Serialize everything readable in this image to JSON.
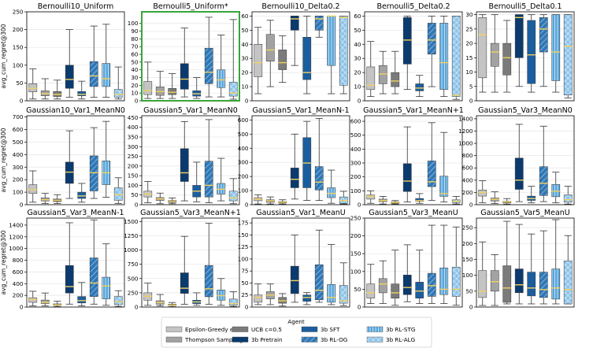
{
  "figure": {
    "y_label": "avg_cum_regret@300",
    "highlighted_panel": "Bernoulli5_Uniform",
    "highlight_color": "#3aa63a"
  },
  "legend": {
    "title": "Agent",
    "entries": [
      {
        "name": "Epsilon-Greedy e=0.1",
        "color": "#c4c4c4",
        "pattern": "solid"
      },
      {
        "name": "Thompson Sampling",
        "color": "#a2a2a2",
        "pattern": "solid"
      },
      {
        "name": "UCB c=0.5",
        "color": "#7b7b7b",
        "pattern": "solid"
      },
      {
        "name": "3b Pretrain",
        "color": "#0b3a6e",
        "pattern": "solid"
      },
      {
        "name": "3b SFT",
        "color": "#1b5ea0",
        "pattern": "solid"
      },
      {
        "name": "3b RL-OG",
        "color": "#2f78b8",
        "pattern": "hatch"
      },
      {
        "name": "3b RL-STG",
        "color": "#58a6dc",
        "pattern": "vlines"
      },
      {
        "name": "3b RL-ALG",
        "color": "#8ec4ea",
        "pattern": "cross"
      }
    ],
    "median_color": "#f2d15b"
  },
  "chart_data": [
    {
      "type": "box",
      "title": "Bernoulli10_Uniform",
      "ylim": [
        0,
        250
      ],
      "yticks": [
        0,
        50,
        100,
        150,
        200,
        250
      ],
      "boxes": [
        [
          5,
          25,
          35,
          48,
          90
        ],
        [
          5,
          14,
          20,
          28,
          62
        ],
        [
          5,
          12,
          18,
          26,
          58
        ],
        [
          10,
          35,
          60,
          100,
          200
        ],
        [
          5,
          14,
          18,
          26,
          55
        ],
        [
          10,
          40,
          70,
          110,
          210
        ],
        [
          10,
          40,
          62,
          105,
          215
        ],
        [
          5,
          10,
          18,
          32,
          95
        ]
      ]
    },
    {
      "type": "box",
      "title": "Bernoulli5_Uniform*",
      "ylim": [
        0,
        115
      ],
      "yticks": [
        0,
        10,
        20,
        30,
        40,
        50,
        60,
        70,
        80,
        90,
        100
      ],
      "boxes": [
        [
          3,
          8,
          13,
          25,
          50
        ],
        [
          3,
          7,
          12,
          18,
          38
        ],
        [
          3,
          8,
          11,
          16,
          35
        ],
        [
          5,
          15,
          28,
          48,
          94
        ],
        [
          3,
          6,
          9,
          13,
          30
        ],
        [
          5,
          22,
          37,
          68,
          108
        ],
        [
          5,
          17,
          27,
          40,
          85
        ],
        [
          2,
          6,
          10,
          24,
          105
        ]
      ]
    },
    {
      "type": "box",
      "title": "Bernoulli10_Delta0.2",
      "ylim": [
        0,
        63
      ],
      "yticks": [
        0,
        10,
        20,
        30,
        40,
        50,
        60
      ],
      "boxes": [
        [
          5,
          17,
          27,
          40,
          52
        ],
        [
          10,
          28,
          36,
          47,
          57
        ],
        [
          13,
          22,
          27,
          36,
          46
        ],
        [
          25,
          50,
          58,
          60,
          60
        ],
        [
          5,
          15,
          20,
          45,
          60
        ],
        [
          45,
          50,
          58,
          60,
          60
        ],
        [
          5,
          25,
          60,
          60,
          60
        ],
        [
          5,
          11,
          59,
          60,
          60
        ]
      ]
    },
    {
      "type": "box",
      "title": "Bernoulli5_Delta0.2",
      "ylim": [
        0,
        63
      ],
      "yticks": [
        0,
        10,
        20,
        30,
        40,
        50,
        60
      ],
      "boxes": [
        [
          3,
          8,
          11,
          24,
          42
        ],
        [
          5,
          12,
          19,
          25,
          35
        ],
        [
          5,
          10,
          14,
          20,
          35
        ],
        [
          8,
          26,
          43,
          59,
          60
        ],
        [
          3,
          7,
          9,
          12,
          18
        ],
        [
          10,
          33,
          43,
          55,
          60
        ],
        [
          3,
          8,
          27,
          55,
          60
        ],
        [
          1,
          3,
          4,
          60,
          60
        ]
      ]
    },
    {
      "type": "box",
      "title": "Bernoulli5_Delta0.1",
      "ylim": [
        0,
        31
      ],
      "yticks": [
        0,
        5,
        10,
        15,
        20,
        25,
        30
      ],
      "boxes": [
        [
          3,
          8,
          23,
          29,
          30
        ],
        [
          3,
          12,
          17,
          20,
          30
        ],
        [
          3,
          9,
          15,
          20,
          28
        ],
        [
          5,
          15,
          29,
          30,
          30
        ],
        [
          3,
          6,
          16,
          28,
          30
        ],
        [
          5,
          17,
          25,
          29,
          30
        ],
        [
          3,
          7,
          17,
          30,
          30
        ],
        [
          1,
          2,
          19,
          30,
          30
        ]
      ]
    },
    {
      "type": "box",
      "title": "Gaussian10_Var1_MeanN0",
      "ylim": [
        0,
        710
      ],
      "yticks": [
        0,
        100,
        200,
        300,
        400,
        500,
        600,
        700
      ],
      "boxes": [
        [
          20,
          90,
          120,
          160,
          270
        ],
        [
          10,
          30,
          40,
          55,
          90
        ],
        [
          10,
          25,
          35,
          45,
          80
        ],
        [
          50,
          170,
          260,
          340,
          590
        ],
        [
          20,
          50,
          70,
          100,
          170
        ],
        [
          50,
          110,
          255,
          390,
          615
        ],
        [
          60,
          160,
          255,
          350,
          665
        ],
        [
          10,
          35,
          80,
          135,
          215
        ]
      ]
    },
    {
      "type": "box",
      "title": "Gaussian5_Var1_MeanN0",
      "ylim": [
        0,
        460
      ],
      "yticks": [
        0,
        50,
        100,
        150,
        200,
        250,
        300,
        350,
        400,
        450
      ],
      "boxes": [
        [
          10,
          40,
          55,
          70,
          120
        ],
        [
          5,
          22,
          30,
          37,
          60
        ],
        [
          5,
          12,
          18,
          22,
          35
        ],
        [
          20,
          120,
          165,
          290,
          430
        ],
        [
          15,
          40,
          70,
          100,
          220
        ],
        [
          10,
          40,
          100,
          225,
          440
        ],
        [
          20,
          55,
          80,
          110,
          240
        ],
        [
          5,
          20,
          35,
          70,
          135
        ]
      ]
    },
    {
      "type": "box",
      "title": "Gaussian5_Var1_MeanN-1",
      "ylim": [
        0,
        630
      ],
      "yticks": [
        0,
        100,
        200,
        300,
        400,
        500,
        600
      ],
      "boxes": [
        [
          5,
          28,
          40,
          50,
          70
        ],
        [
          5,
          17,
          27,
          35,
          55
        ],
        [
          5,
          12,
          17,
          22,
          35
        ],
        [
          40,
          120,
          180,
          260,
          500
        ],
        [
          30,
          120,
          295,
          475,
          590
        ],
        [
          30,
          105,
          160,
          270,
          610
        ],
        [
          10,
          50,
          80,
          120,
          245
        ],
        [
          5,
          10,
          30,
          55,
          95
        ]
      ]
    },
    {
      "type": "box",
      "title": "Gaussian5_Var1_MeanN+1",
      "ylim": [
        0,
        640
      ],
      "yticks": [
        0,
        100,
        200,
        300,
        400,
        500,
        600
      ],
      "boxes": [
        [
          10,
          40,
          60,
          70,
          100
        ],
        [
          5,
          22,
          30,
          40,
          60
        ],
        [
          5,
          10,
          15,
          20,
          30
        ],
        [
          20,
          95,
          170,
          295,
          560
        ],
        [
          10,
          25,
          30,
          45,
          80
        ],
        [
          30,
          130,
          165,
          315,
          590
        ],
        [
          20,
          60,
          80,
          205,
          520
        ],
        [
          5,
          15,
          25,
          35,
          60
        ]
      ]
    },
    {
      "type": "box",
      "title": "Gaussian5_Var3_MeanN0",
      "ylim": [
        0,
        1450
      ],
      "yticks": [
        0,
        200,
        400,
        600,
        800,
        1000,
        1200,
        1400
      ],
      "boxes": [
        [
          30,
          140,
          200,
          240,
          390
        ],
        [
          20,
          60,
          90,
          110,
          210
        ],
        [
          10,
          30,
          45,
          55,
          100
        ],
        [
          50,
          250,
          400,
          760,
          1310
        ],
        [
          30,
          70,
          100,
          140,
          300
        ],
        [
          50,
          150,
          350,
          620,
          1280
        ],
        [
          30,
          130,
          220,
          330,
          530
        ],
        [
          10,
          40,
          80,
          160,
          300
        ]
      ]
    },
    {
      "type": "box",
      "title": "Gaussian5_Var3_MeanN-1",
      "ylim": [
        0,
        1520
      ],
      "yticks": [
        0,
        200,
        400,
        600,
        800,
        1000,
        1200,
        1400
      ],
      "boxes": [
        [
          20,
          80,
          130,
          160,
          270
        ],
        [
          20,
          60,
          80,
          120,
          240
        ],
        [
          10,
          30,
          40,
          55,
          100
        ],
        [
          50,
          240,
          350,
          710,
          1440
        ],
        [
          20,
          70,
          110,
          180,
          420
        ],
        [
          50,
          180,
          410,
          840,
          1490
        ],
        [
          30,
          140,
          360,
          510,
          1080
        ],
        [
          10,
          40,
          90,
          180,
          280
        ]
      ]
    },
    {
      "type": "box",
      "title": "Gaussian5_Var3_MeanN+1",
      "ylim": [
        0,
        1560
      ],
      "yticks": [
        0,
        250,
        500,
        750,
        1000,
        1250,
        1500
      ],
      "boxes": [
        [
          30,
          120,
          190,
          250,
          420
        ],
        [
          20,
          50,
          80,
          110,
          220
        ],
        [
          5,
          25,
          35,
          50,
          80
        ],
        [
          50,
          240,
          330,
          600,
          1240
        ],
        [
          30,
          60,
          90,
          120,
          250
        ],
        [
          50,
          180,
          320,
          730,
          1470
        ],
        [
          30,
          120,
          200,
          300,
          500
        ],
        [
          10,
          30,
          60,
          140,
          270
        ]
      ]
    },
    {
      "type": "box",
      "title": "Gaussian5_Var1_MeanU",
      "ylim": [
        0,
        185
      ],
      "yticks": [
        0,
        25,
        50,
        75,
        100,
        125,
        150,
        175
      ],
      "boxes": [
        [
          5,
          10,
          20,
          25,
          48
        ],
        [
          5,
          17,
          25,
          32,
          48
        ],
        [
          2,
          8,
          13,
          20,
          28
        ],
        [
          10,
          28,
          55,
          85,
          150
        ],
        [
          5,
          12,
          20,
          25,
          30
        ],
        [
          10,
          15,
          35,
          88,
          160
        ],
        [
          5,
          10,
          20,
          47,
          130
        ],
        [
          3,
          8,
          13,
          45,
          92
        ]
      ]
    },
    {
      "type": "box",
      "title": "Gaussian5_Var3_MeanU",
      "ylim": [
        0,
        250
      ],
      "yticks": [
        0,
        50,
        100,
        150,
        200,
        250
      ],
      "boxes": [
        [
          10,
          25,
          40,
          65,
          120
        ],
        [
          10,
          40,
          65,
          80,
          130
        ],
        [
          5,
          25,
          40,
          65,
          160
        ],
        [
          15,
          35,
          55,
          90,
          175
        ],
        [
          10,
          25,
          45,
          70,
          160
        ],
        [
          10,
          30,
          60,
          95,
          230
        ],
        [
          10,
          35,
          50,
          110,
          230
        ],
        [
          5,
          30,
          50,
          112,
          225
        ]
      ]
    },
    {
      "type": "box",
      "title": "Gaussian5_Var5_MeanU",
      "ylim": [
        0,
        280
      ],
      "yticks": [
        0,
        50,
        100,
        150,
        200,
        250
      ],
      "boxes": [
        [
          5,
          30,
          50,
          115,
          205
        ],
        [
          5,
          50,
          80,
          115,
          165
        ],
        [
          10,
          15,
          60,
          130,
          270
        ],
        [
          10,
          45,
          70,
          120,
          260
        ],
        [
          10,
          35,
          60,
          110,
          230
        ],
        [
          10,
          30,
          55,
          110,
          240
        ],
        [
          10,
          25,
          60,
          120,
          275
        ],
        [
          10,
          10,
          55,
          145,
          225
        ]
      ]
    }
  ]
}
